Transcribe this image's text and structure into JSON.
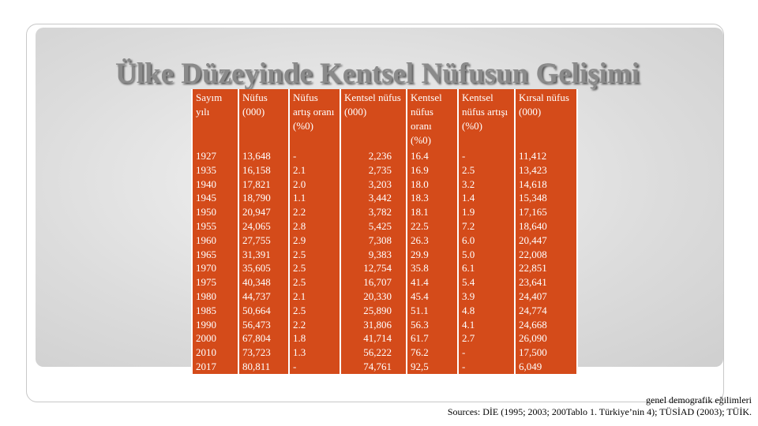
{
  "title": "Ülke Düzeyinde Kentsel Nüfusun Gelişimi",
  "table": {
    "headers": [
      "Sayım yılı",
      "Nüfus (000)",
      "Nüfus artış oranı (%0)",
      "Kentsel nüfus (000)",
      "Kentsel nüfus oranı (%0)",
      "Kentsel nüfus artışı (%0)",
      "Kırsal nüfus (000)"
    ],
    "rows": [
      [
        "1927",
        "13,648",
        "-",
        "2,236",
        "16.4",
        "-",
        "11,412"
      ],
      [
        "1935",
        "16,158",
        "2.1",
        "2,735",
        "16.9",
        "2.5",
        "13,423"
      ],
      [
        "1940",
        "17,821",
        "2.0",
        "3,203",
        "18.0",
        "3.2",
        "14,618"
      ],
      [
        "1945",
        "18,790",
        "1.1",
        "3,442",
        "18.3",
        "1.4",
        "15,348"
      ],
      [
        "1950",
        "20,947",
        "2.2",
        "3,782",
        "18.1",
        "1.9",
        "17,165"
      ],
      [
        "1955",
        "24,065",
        "2.8",
        "5,425",
        "22.5",
        "7.2",
        "18,640"
      ],
      [
        "1960",
        "27,755",
        "2.9",
        "7,308",
        "26.3",
        "6.0",
        "20,447"
      ],
      [
        "1965",
        "31,391",
        "2.5",
        "9,383",
        "29.9",
        "5.0",
        "22,008"
      ],
      [
        "1970",
        "35,605",
        "2.5",
        "12,754",
        "35.8",
        "6.1",
        "22,851"
      ],
      [
        "1975",
        "40,348",
        "2.5",
        "16,707",
        "41.4",
        "5.4",
        "23,641"
      ],
      [
        "1980",
        "44,737",
        "2.1",
        "20,330",
        "45.4",
        "3.9",
        "24,407"
      ],
      [
        "1985",
        "50,664",
        "2.5",
        "25,890",
        "51.1",
        "4.8",
        "24,774"
      ],
      [
        "1990",
        "56,473",
        "2.2",
        "31,806",
        "56.3",
        "4.1",
        "24,668"
      ],
      [
        "2000",
        "67,804",
        "1.8",
        "41,714",
        "61.7",
        "2.7",
        "26,090"
      ],
      [
        "2010",
        "73,723",
        "1.3",
        "56,222",
        "76.2",
        "-",
        "17,500"
      ],
      [
        "2017",
        "80,811",
        "-",
        "74,761",
        "92,5",
        "-",
        "6,049"
      ]
    ]
  },
  "footer": {
    "note": "genel demografik eğilimleri",
    "sources": "Sources: DİE (1995; 2003; 200Tablo 1. Türkiye’nin 4); TÜSİAD (2003); TÜİK."
  }
}
